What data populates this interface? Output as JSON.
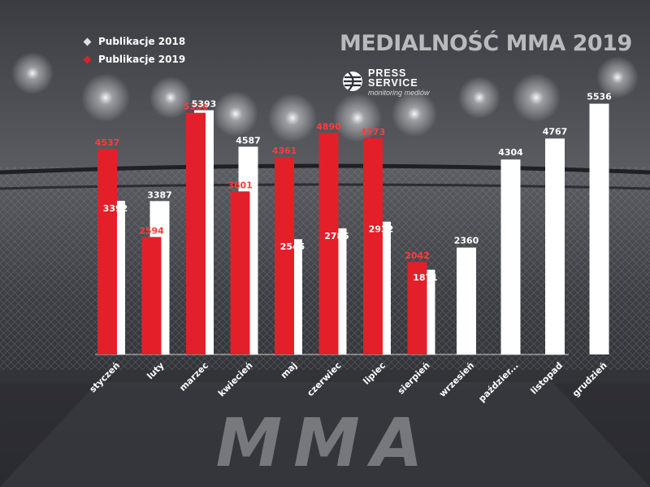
{
  "chart_data": {
    "type": "bar",
    "title": "MEDIALNOŚĆ MMA 2019",
    "categories": [
      "styczeń",
      "luty",
      "marzec",
      "kwiecień",
      "maj",
      "czerwiec",
      "lipiec",
      "sierpień",
      "wrzesień",
      "paździer...",
      "listopad",
      "grudzień"
    ],
    "series": [
      {
        "name": "Publikacje 2018",
        "color": "#ffffff",
        "values": [
          3392,
          3387,
          5393,
          4587,
          2545,
          2785,
          2932,
          1871,
          2360,
          4304,
          4767,
          5536
        ]
      },
      {
        "name": "Publikacje 2019",
        "color": "#e3202a",
        "values": [
          4537,
          2594,
          5336,
          3601,
          4361,
          4890,
          4773,
          2042,
          null,
          null,
          null,
          null
        ]
      }
    ],
    "ylim": [
      0,
      5600
    ],
    "grid": false,
    "legend_position": "top-left"
  },
  "logo": {
    "line1": "PRESS",
    "line2": "SERVICE",
    "line3": "monitoring mediów"
  },
  "background_text": "MMA",
  "colors": {
    "bar_2018": "#ffffff",
    "bar_2019": "#e3202a",
    "label_2019": "#ff3b3b",
    "title": "#b9babc"
  }
}
